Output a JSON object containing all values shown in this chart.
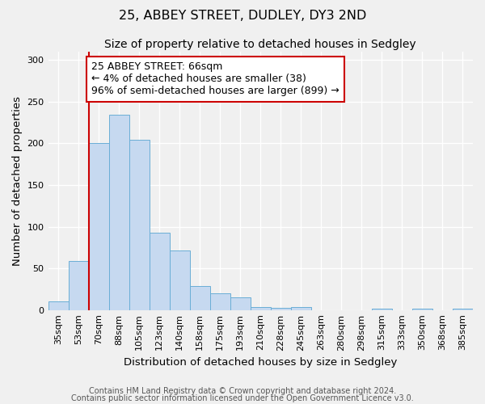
{
  "title": "25, ABBEY STREET, DUDLEY, DY3 2ND",
  "subtitle": "Size of property relative to detached houses in Sedgley",
  "xlabel": "Distribution of detached houses by size in Sedgley",
  "ylabel": "Number of detached properties",
  "footnote1": "Contains HM Land Registry data © Crown copyright and database right 2024.",
  "footnote2": "Contains public sector information licensed under the Open Government Licence v3.0.",
  "categories": [
    "35sqm",
    "53sqm",
    "70sqm",
    "88sqm",
    "105sqm",
    "123sqm",
    "140sqm",
    "158sqm",
    "175sqm",
    "193sqm",
    "210sqm",
    "228sqm",
    "245sqm",
    "263sqm",
    "280sqm",
    "298sqm",
    "315sqm",
    "333sqm",
    "350sqm",
    "368sqm",
    "385sqm"
  ],
  "values": [
    10,
    59,
    200,
    234,
    204,
    93,
    71,
    29,
    20,
    15,
    4,
    3,
    4,
    0,
    0,
    0,
    2,
    0,
    2,
    0,
    2
  ],
  "bar_color": "#c6d9f0",
  "bar_edge_color": "#6aaed6",
  "property_line_color": "#cc0000",
  "annotation_text": "25 ABBEY STREET: 66sqm\n← 4% of detached houses are smaller (38)\n96% of semi-detached houses are larger (899) →",
  "annotation_box_color": "#ffffff",
  "annotation_box_edge_color": "#cc0000",
  "ylim": [
    0,
    310
  ],
  "yticks": [
    0,
    50,
    100,
    150,
    200,
    250,
    300
  ],
  "title_fontsize": 11.5,
  "subtitle_fontsize": 10,
  "axis_label_fontsize": 9.5,
  "tick_fontsize": 8,
  "annotation_fontsize": 9,
  "footnote_fontsize": 7,
  "background_color": "#f0f0f0",
  "plot_bg_color": "#f0f0f0",
  "grid_color": "#ffffff"
}
